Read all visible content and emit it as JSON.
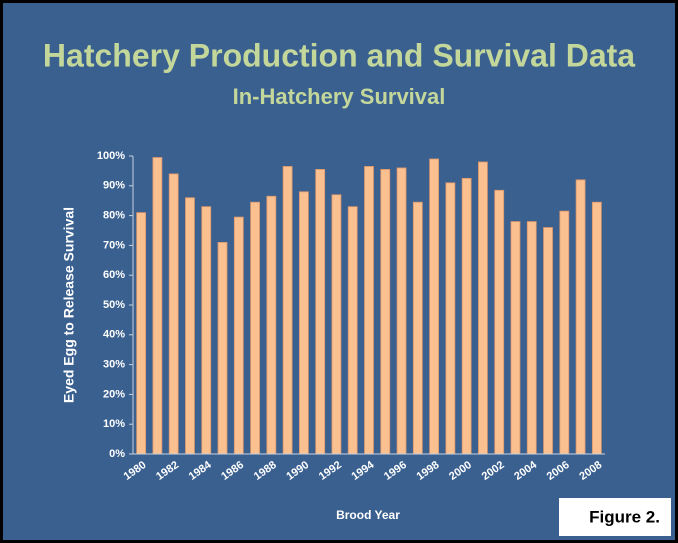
{
  "chart_data": {
    "type": "bar",
    "title": "Hatchery Production and Survival Data",
    "subtitle": "In-Hatchery Survival",
    "x_label": "Brood Year",
    "y_label": "Eyed Egg to Release Survival",
    "annotation": "Figure 2.",
    "categories": [
      "1980",
      null,
      "1982",
      null,
      "1984",
      null,
      "1986",
      null,
      "1988",
      null,
      "1990",
      null,
      "1992",
      null,
      "1994",
      null,
      "1996",
      null,
      "1998",
      null,
      "2000",
      null,
      "2002",
      null,
      "2004",
      null,
      "2006",
      null,
      "2008"
    ],
    "values": [
      81,
      99.5,
      94,
      86,
      83,
      71,
      79.5,
      84.5,
      86.5,
      96.5,
      88,
      95.5,
      87,
      83,
      96.5,
      95.5,
      96,
      84.5,
      99,
      91,
      92.5,
      98,
      88.5,
      78,
      78,
      76,
      81.5,
      92,
      84.5
    ],
    "color": "#fac090",
    "ylim": [
      0,
      100
    ],
    "yticks": [
      {
        "value": 0,
        "label": "0%"
      },
      {
        "value": 10,
        "label": "10%"
      },
      {
        "value": 20,
        "label": "20%"
      },
      {
        "value": 30,
        "label": "30%"
      },
      {
        "value": 40,
        "label": "40%"
      },
      {
        "value": 50,
        "label": "50%"
      },
      {
        "value": 60,
        "label": "60%"
      },
      {
        "value": 70,
        "label": "70%"
      },
      {
        "value": 80,
        "label": "80%"
      },
      {
        "value": 90,
        "label": "90%"
      },
      {
        "value": 100,
        "label": "100%"
      }
    ],
    "grid": false
  }
}
